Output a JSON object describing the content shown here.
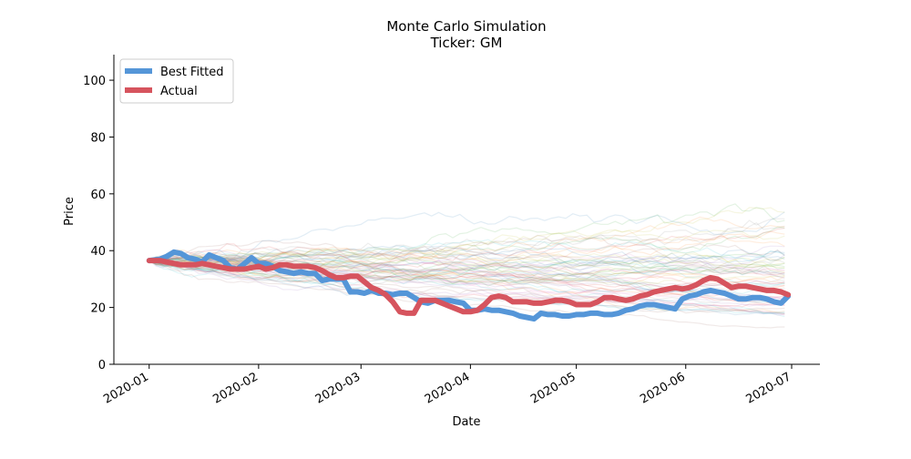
{
  "chart_data": {
    "type": "line",
    "title": "Monte Carlo Simulation",
    "subtitle": "Ticker: GM",
    "xlabel": "Date",
    "ylabel": "Price",
    "x_ticks": [
      "2020-01",
      "2020-02",
      "2020-03",
      "2020-04",
      "2020-05",
      "2020-06",
      "2020-07"
    ],
    "x_tick_days": [
      0,
      31,
      60,
      91,
      121,
      152,
      182
    ],
    "xlim_days": [
      -10,
      190
    ],
    "y_ticks": [
      0,
      20,
      40,
      60,
      80,
      100
    ],
    "ylim": [
      0,
      109
    ],
    "legend_position": "top-left",
    "grid": false,
    "series": [
      {
        "name": "Best Fitted",
        "color": "#5596d8",
        "x_days": [
          0,
          3,
          5,
          7,
          9,
          11,
          13,
          15,
          17,
          19,
          21,
          23,
          25,
          27,
          29,
          31,
          33,
          35,
          37,
          39,
          41,
          43,
          45,
          47,
          49,
          51,
          53,
          55,
          57,
          59,
          61,
          63,
          65,
          67,
          69,
          71,
          73,
          75,
          77,
          79,
          81,
          83,
          85,
          87,
          89,
          91,
          93,
          95,
          97,
          99,
          101,
          103,
          105,
          107,
          109,
          111,
          113,
          115,
          117,
          119,
          121,
          123,
          125,
          127,
          129,
          131,
          133,
          135,
          137,
          139,
          141,
          143,
          145,
          147,
          149,
          151,
          153,
          155,
          157,
          159,
          161,
          163,
          165,
          167,
          169,
          171,
          173,
          175,
          177,
          179,
          181
        ],
        "values": [
          36.5,
          37,
          38,
          39.5,
          39,
          37.5,
          37,
          36,
          38.5,
          37.5,
          36.5,
          34,
          33.5,
          35.5,
          37.5,
          35.5,
          35.5,
          34.5,
          33,
          32.5,
          32,
          32.5,
          32,
          32,
          29.5,
          30,
          30,
          30,
          25.5,
          25.5,
          25,
          26,
          25,
          25,
          24.5,
          25,
          25,
          23.5,
          22,
          21.5,
          22.5,
          22.5,
          22.5,
          22,
          21.5,
          19,
          19,
          19.5,
          19,
          19,
          18.5,
          18,
          17,
          16.5,
          16,
          18,
          17.5,
          17.5,
          17,
          17,
          17.5,
          17.5,
          18,
          18,
          17.5,
          17.5,
          18,
          19,
          19.5,
          20.5,
          21,
          21,
          20.5,
          20,
          19.5,
          23,
          24,
          24.5,
          25.5,
          26,
          25.5,
          25,
          24,
          23,
          23,
          23.5,
          23.5,
          23,
          22,
          21.5,
          24
        ]
      },
      {
        "name": "Actual",
        "color": "#d6545e",
        "x_days": [
          0,
          3,
          5,
          7,
          9,
          11,
          13,
          15,
          17,
          19,
          21,
          23,
          25,
          27,
          29,
          31,
          33,
          35,
          37,
          39,
          41,
          43,
          45,
          47,
          49,
          51,
          53,
          55,
          57,
          59,
          61,
          63,
          65,
          67,
          69,
          71,
          73,
          75,
          77,
          79,
          81,
          83,
          85,
          87,
          89,
          91,
          93,
          95,
          97,
          99,
          101,
          103,
          105,
          107,
          109,
          111,
          113,
          115,
          117,
          119,
          121,
          123,
          125,
          127,
          129,
          131,
          133,
          135,
          137,
          139,
          141,
          143,
          145,
          147,
          149,
          151,
          153,
          155,
          157,
          159,
          161,
          163,
          165,
          167,
          169,
          171,
          173,
          175,
          177,
          179,
          181
        ],
        "values": [
          36.5,
          36.5,
          36,
          35.5,
          35,
          35,
          35,
          35.5,
          35,
          34.5,
          34,
          33.5,
          33.5,
          33.5,
          34,
          34.5,
          33.5,
          34,
          35,
          35,
          34.5,
          34.5,
          34.5,
          34,
          33,
          31.5,
          30.5,
          30.5,
          31,
          31,
          29,
          27,
          26,
          24.5,
          22,
          18.5,
          18,
          18,
          22.5,
          22.5,
          22.5,
          21.5,
          20.5,
          19.5,
          18.5,
          18.5,
          19,
          21,
          23.5,
          24,
          23.5,
          22,
          22,
          22,
          21.5,
          21.5,
          22,
          22.5,
          22.5,
          22,
          21,
          21,
          21,
          22,
          23.5,
          23.5,
          23,
          22.5,
          23,
          24,
          24.5,
          25.5,
          26,
          26.5,
          27,
          26.5,
          27,
          28,
          29.5,
          30.5,
          30,
          28.5,
          27,
          27.5,
          27.5,
          27,
          26.5,
          26,
          26,
          25.5,
          24.5
        ]
      }
    ]
  }
}
